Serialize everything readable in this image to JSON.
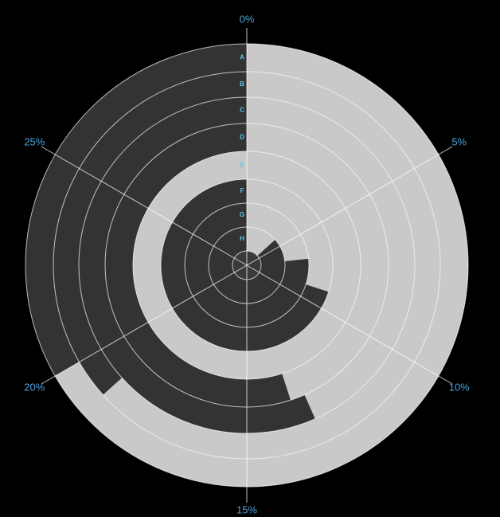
{
  "chart_data": {
    "type": "radial_bar",
    "categories": [
      "A",
      "B",
      "C",
      "D",
      "E",
      "F",
      "G",
      "H"
    ],
    "values": [
      20,
      19,
      13,
      13.5,
      30,
      9,
      7,
      4
    ],
    "color": "#c9c9c9",
    "xlim": [
      0,
      30
    ],
    "xticks": [
      {
        "value": 0,
        "label": "0%"
      },
      {
        "value": 5,
        "label": "5%"
      },
      {
        "value": 10,
        "label": "10%"
      },
      {
        "value": 15,
        "label": "15%"
      },
      {
        "value": 20,
        "label": "20%"
      },
      {
        "value": 25,
        "label": "25%"
      }
    ],
    "grid": true
  }
}
